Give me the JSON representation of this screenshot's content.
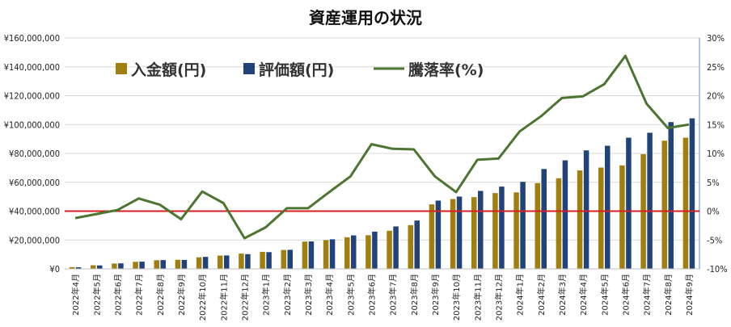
{
  "chart_data": {
    "type": "bar",
    "title": "資産運用の状況",
    "categories": [
      "2022年4月",
      "2022年5月",
      "2022年6月",
      "2022年7月",
      "2022年8月",
      "2022年9月",
      "2022年10月",
      "2022年11月",
      "2022年12月",
      "2023年1月",
      "2023年2月",
      "2023年3月",
      "2023年4月",
      "2023年5月",
      "2023年6月",
      "2023年7月",
      "2023年8月",
      "2023年9月",
      "2023年10月",
      "2023年11月",
      "2023年12月",
      "2024年1月",
      "2024年2月",
      "2024年3月",
      "2024年4月",
      "2024年5月",
      "2024年6月",
      "2024年7月",
      "2024年8月",
      "2024年9月"
    ],
    "series": [
      {
        "name": "入金額(円)",
        "type": "bar",
        "axis": "left",
        "color": "#a07f0e",
        "values": [
          1200000,
          2500000,
          3700000,
          4900000,
          6000000,
          6300000,
          8000000,
          9200000,
          10600000,
          11800000,
          13100000,
          18900000,
          19900000,
          21900000,
          23300000,
          26400000,
          30300000,
          44700000,
          48400000,
          49700000,
          52500000,
          53000000,
          59400000,
          62800000,
          68200000,
          70200000,
          71700000,
          79500000,
          88800000,
          90900000
        ]
      },
      {
        "name": "評価額(円)",
        "type": "bar",
        "axis": "left",
        "color": "#22427a",
        "values": [
          1100000,
          2400000,
          3800000,
          5000000,
          6100000,
          6200000,
          8300000,
          9300000,
          10200000,
          11600000,
          13200000,
          19000000,
          20500000,
          23200000,
          25800000,
          29400000,
          33500000,
          47300000,
          50100000,
          54000000,
          57000000,
          60300000,
          69200000,
          75200000,
          82100000,
          85300000,
          90900000,
          94300000,
          101700000,
          104300000
        ]
      },
      {
        "name": "騰落率(%)",
        "type": "line",
        "axis": "right",
        "color": "#4c7531",
        "values": [
          -1.2,
          -0.5,
          0.2,
          2.2,
          1.1,
          -1.4,
          3.4,
          1.4,
          -4.7,
          -2.8,
          0.5,
          0.5,
          3.3,
          6.0,
          11.6,
          10.8,
          10.7,
          6.0,
          3.3,
          8.9,
          9.1,
          13.8,
          16.4,
          19.6,
          19.9,
          22.0,
          26.9,
          18.6,
          14.4,
          15.0
        ]
      }
    ],
    "y_left": {
      "min": 0,
      "max": 160000000,
      "step": 20000000,
      "tick_labels": [
        "¥0",
        "¥20,000,000",
        "¥40,000,000",
        "¥60,000,000",
        "¥80,000,000",
        "¥100,000,000",
        "¥120,000,000",
        "¥140,000,000",
        "¥160,000,000"
      ]
    },
    "y_right": {
      "min": -10,
      "max": 30,
      "step": 5,
      "tick_labels": [
        "-10%",
        "-5%",
        "0%",
        "5%",
        "10%",
        "15%",
        "20%",
        "25%",
        "30%"
      ]
    },
    "reference_line": {
      "axis": "right",
      "value": 0,
      "color": "#d42020"
    },
    "grid": true,
    "legend_position": "top-left"
  }
}
